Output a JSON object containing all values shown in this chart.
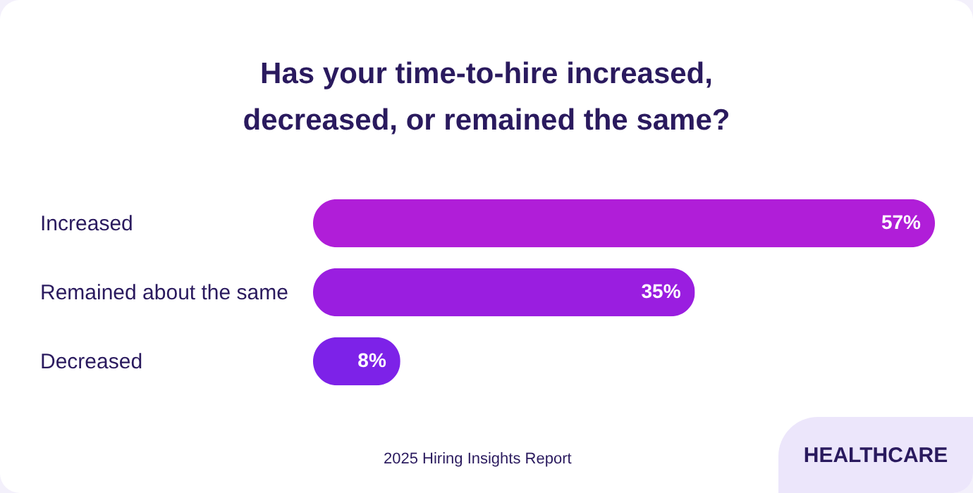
{
  "chart_data": {
    "type": "bar",
    "orientation": "horizontal",
    "title": "Has your time-to-hire increased, decreased, or remained the same?",
    "categories": [
      "Increased",
      "Remained about the same",
      "Decreased"
    ],
    "values": [
      57,
      35,
      8
    ],
    "value_labels": [
      "57%",
      "35%",
      "8%"
    ],
    "colors": [
      "#b01ed8",
      "#9a1ee0",
      "#7d22e8"
    ],
    "annotations": [
      "2025 Hiring Insights Report",
      "HEALTHCARE"
    ]
  }
}
